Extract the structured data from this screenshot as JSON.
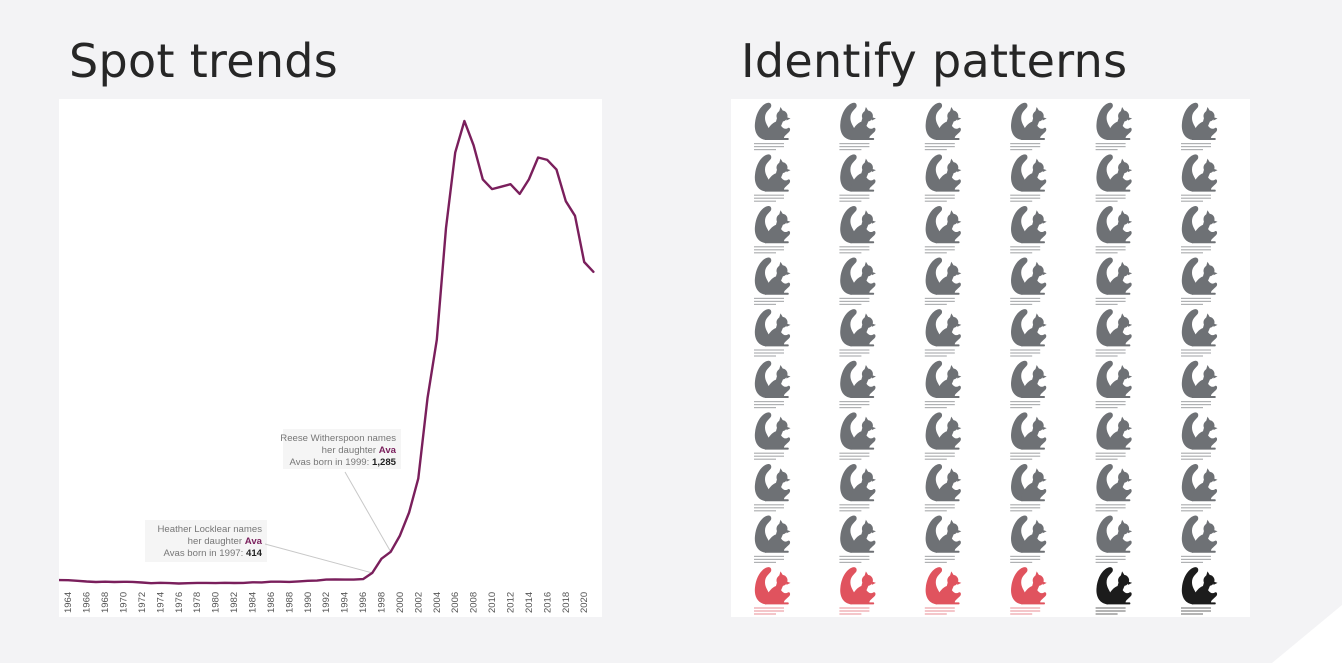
{
  "headings": {
    "left": "Spot trends",
    "right": "Identify patterns"
  },
  "chart_data": {
    "type": "line",
    "title": "",
    "xlabel": "",
    "ylabel": "",
    "grid": false,
    "legend": "none",
    "series_color": "#7a1f5c",
    "x_ticks": [
      "1964",
      "1966",
      "1968",
      "1970",
      "1972",
      "1974",
      "1976",
      "1978",
      "1980",
      "1982",
      "1984",
      "1986",
      "1988",
      "1990",
      "1992",
      "1994",
      "1996",
      "1998",
      "2000",
      "2002",
      "2004",
      "2006",
      "2008",
      "2010",
      "2012",
      "2014",
      "2016",
      "2018",
      "2020"
    ],
    "xlim": [
      1963,
      2021.5
    ],
    "ylim": [
      0,
      19000
    ],
    "x": [
      1963,
      1964,
      1965,
      1966,
      1967,
      1968,
      1969,
      1970,
      1971,
      1972,
      1973,
      1974,
      1975,
      1976,
      1977,
      1978,
      1979,
      1980,
      1981,
      1982,
      1983,
      1984,
      1985,
      1986,
      1987,
      1988,
      1989,
      1990,
      1991,
      1992,
      1993,
      1994,
      1995,
      1996,
      1997,
      1998,
      1999,
      2000,
      2001,
      2002,
      2003,
      2004,
      2005,
      2006,
      2007,
      2008,
      2009,
      2010,
      2011,
      2012,
      2013,
      2014,
      2015,
      2016,
      2017,
      2018,
      2019,
      2020,
      2021
    ],
    "y": [
      120,
      115,
      90,
      60,
      40,
      55,
      40,
      50,
      45,
      20,
      -10,
      10,
      -5,
      -20,
      -10,
      5,
      5,
      -5,
      10,
      0,
      5,
      30,
      25,
      55,
      55,
      45,
      65,
      90,
      100,
      140,
      150,
      140,
      140,
      160,
      414,
      1000,
      1285,
      1950,
      2900,
      4300,
      7600,
      10000,
      14600,
      17700,
      19000,
      18000,
      16600,
      16200,
      16300,
      16400,
      16000,
      16600,
      17500,
      17400,
      17000,
      15700,
      15100,
      13200,
      12800
    ],
    "annotations": [
      {
        "x": 1997,
        "line1": "Heather Locklear names",
        "line2_prefix": "her daughter ",
        "line2_highlight": "Ava",
        "line3_prefix": "Avas born in 1997: ",
        "line3_value": "414"
      },
      {
        "x": 1999,
        "line1": "Reese Witherspoon names",
        "line2_prefix": "her daughter ",
        "line2_highlight": "Ava",
        "line3_prefix": "Avas born in 1999: ",
        "line3_value": "1,285"
      }
    ]
  },
  "pattern": {
    "columns": 6,
    "rows": 10,
    "icon": "squirrel-icon",
    "colors": {
      "default": "#6e7175",
      "highlight": "#e0535e",
      "dark": "#1c1c1c"
    },
    "last_row_colors": [
      "highlight",
      "highlight",
      "highlight",
      "highlight",
      "dark",
      "dark"
    ]
  }
}
